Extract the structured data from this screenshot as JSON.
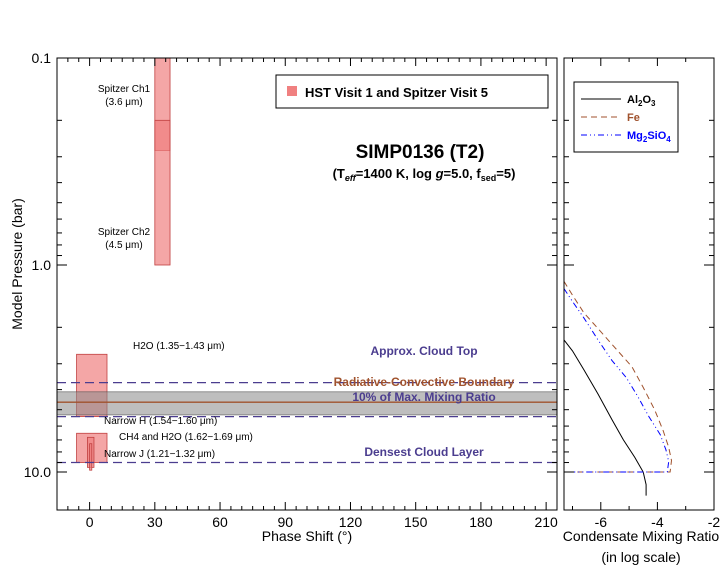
{
  "chart_data": [
    {
      "type": "bar",
      "title": "SIMP0136 (T2)",
      "subtitle": "(Teff=1400 K, log g=5.0, fsed=5)",
      "xlabel": "Phase Shift (°)",
      "ylabel": "Model Pressure (bar)",
      "xlim": [
        -15,
        215
      ],
      "ylim": [
        0.1,
        15
      ],
      "yscale": "log",
      "xticks": [
        "0",
        "30",
        "60",
        "90",
        "120",
        "150",
        "180",
        "210"
      ],
      "yticks": [
        "0.1",
        "1.0",
        "10.0"
      ],
      "legend": {
        "label": "HST Visit 1 and Spitzer Visit 5",
        "placement": "top-right",
        "color": "#f08080"
      },
      "bands": [
        {
          "label": "Spitzer Ch1 (3.6 μm)",
          "label_line1": "Spitzer Ch1",
          "label_line2": "(3.6 μm)",
          "x": [
            30,
            37
          ],
          "p": [
            0.1,
            0.28
          ]
        },
        {
          "label": "Spitzer Ch2 (4.5 μm)",
          "label_line1": "Spitzer Ch2",
          "label_line2": "(4.5 μm)",
          "x": [
            30,
            37
          ],
          "p": [
            0.2,
            1.0
          ]
        },
        {
          "label": "H2O (1.35−1.43 μm)",
          "x": [
            -6,
            8
          ],
          "p": [
            2.7,
            5.4
          ]
        },
        {
          "label": "Narrow H (1.54−1.60 μm)",
          "x": [
            -6,
            8
          ],
          "p": [
            6.5,
            9.0
          ]
        },
        {
          "label": "CH4 and H2O (1.62−1.69 μm)",
          "x": [
            -1,
            2
          ],
          "p": [
            6.8,
            9.5
          ]
        },
        {
          "label": "Narrow J (1.21−1.32 μm)",
          "x": [
            0,
            1
          ],
          "p": [
            7.3,
            9.8
          ]
        }
      ],
      "hlines": [
        {
          "label": "Approx. Cloud Top",
          "p": 3.7,
          "style": "dashed",
          "color": "#4b3d8f"
        },
        {
          "label": "Radiative-Convective Boundary",
          "p": 4.6,
          "style": "solid",
          "color": "#a0522d",
          "band": [
            4.1,
            5.3
          ]
        },
        {
          "label": "10% of Max. Mixing Ratio",
          "p": 5.4,
          "style": "dashed",
          "color": "#4b3d8f"
        },
        {
          "label": "Densest Cloud Layer",
          "p": 9.0,
          "style": "dashed",
          "color": "#4b3d8f"
        }
      ]
    },
    {
      "type": "line",
      "xlabel": "Condensate Mixing Ratio",
      "xlabel2": "(in log scale)",
      "xlim": [
        -7.3,
        -2
      ],
      "ylim": [
        0.1,
        15
      ],
      "yscale": "log",
      "xticks": [
        "-6",
        "-4",
        "-2"
      ],
      "series": [
        {
          "name": "Al2O3",
          "name_main": "Al",
          "name_sub1": "2",
          "name_mid": "O",
          "name_sub2": "3",
          "color": "#000000",
          "style": "solid",
          "x": [
            -7.3,
            -7.0,
            -6.6,
            -6.1,
            -5.6,
            -5.2,
            -4.8,
            -4.5,
            -4.4,
            -4.4
          ],
          "p": [
            2.3,
            2.6,
            3.2,
            4.2,
            5.6,
            7.0,
            8.5,
            10.0,
            11.5,
            13.0
          ]
        },
        {
          "name": "Fe",
          "color": "#a0522d",
          "style": "dashed",
          "x": [
            -7.3,
            -7.0,
            -6.6,
            -6.0,
            -5.4,
            -4.9,
            -4.5,
            -4.1,
            -3.8,
            -3.6,
            -3.5,
            -3.55,
            -7.3
          ],
          "p": [
            1.2,
            1.4,
            1.7,
            2.1,
            2.6,
            3.1,
            3.9,
            5.0,
            6.3,
            7.6,
            8.8,
            10.0,
            10.0
          ]
        },
        {
          "name": "Mg2SiO4",
          "name_main": "Mg",
          "name_sub1": "2",
          "name_mid": "SiO",
          "name_sub2": "4",
          "color": "#0000ff",
          "style": "dashdotdot",
          "x": [
            -7.3,
            -7.0,
            -6.6,
            -6.1,
            -5.6,
            -5.1,
            -4.7,
            -4.3,
            -3.9,
            -3.7,
            -3.6,
            -3.65,
            -7.3
          ],
          "p": [
            1.3,
            1.5,
            1.8,
            2.3,
            2.9,
            3.5,
            4.3,
            5.4,
            6.6,
            7.8,
            8.9,
            10.0,
            10.0
          ]
        }
      ]
    }
  ]
}
